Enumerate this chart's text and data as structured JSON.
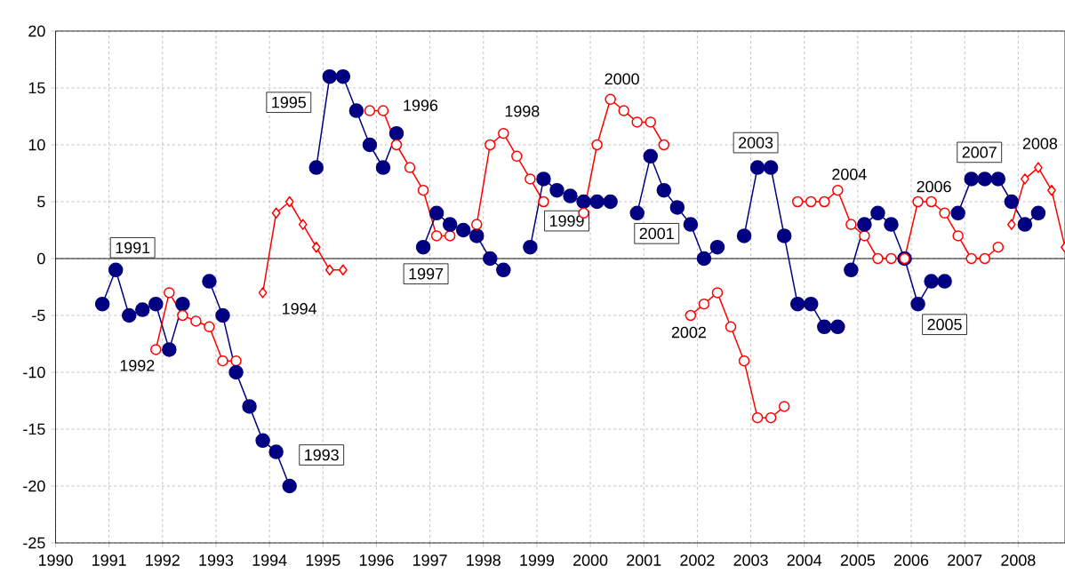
{
  "chart_data": {
    "type": "line",
    "xlim": [
      1990,
      2008.875
    ],
    "ylim": [
      -25,
      20
    ],
    "xticks": [
      1990,
      1991,
      1992,
      1993,
      1994,
      1995,
      1996,
      1997,
      1998,
      1999,
      2000,
      2001,
      2002,
      2003,
      2004,
      2005,
      2006,
      2007,
      2008
    ],
    "yticks": [
      -25,
      -20,
      -15,
      -10,
      -5,
      0,
      5,
      10,
      15,
      20
    ],
    "grid": true,
    "legend": false,
    "ref_lines": [
      {
        "axis": "y",
        "value": 0,
        "color": "#000000"
      }
    ],
    "series": [
      {
        "name": "1991",
        "color": "#000080",
        "marker": "circle",
        "x": [
          1990.875,
          1991.125,
          1991.375,
          1991.625,
          1991.875,
          1992.125,
          1992.375
        ],
        "values": [
          -4,
          -1,
          -5,
          -4.5,
          -4,
          -8,
          -4
        ]
      },
      {
        "name": "1992",
        "color": "#ff0000",
        "marker": "circle",
        "x": [
          1991.875,
          1992.125,
          1992.375,
          1992.625,
          1992.875,
          1993.125,
          1993.375
        ],
        "values": [
          -8,
          -3,
          -5,
          -5.5,
          -6,
          -9,
          -9
        ]
      },
      {
        "name": "1993",
        "color": "#000080",
        "marker": "circle",
        "x": [
          1992.875,
          1993.125,
          1993.375,
          1993.625,
          1993.875,
          1994.125,
          1994.375
        ],
        "values": [
          -2,
          -5,
          -10,
          -13,
          -16,
          -17,
          -20
        ]
      },
      {
        "name": "1994",
        "color": "#ff0000",
        "marker": "diamond",
        "x": [
          1993.875,
          1994.125,
          1994.375,
          1994.625,
          1994.875,
          1995.125,
          1995.375
        ],
        "values": [
          -3,
          4,
          5,
          3,
          1,
          -1,
          -1
        ]
      },
      {
        "name": "1995",
        "color": "#000080",
        "marker": "circle",
        "x": [
          1994.875,
          1995.125,
          1995.375,
          1995.625,
          1995.875,
          1996.125,
          1996.375
        ],
        "values": [
          8,
          16,
          16,
          13,
          10,
          8,
          11
        ]
      },
      {
        "name": "1996",
        "color": "#ff0000",
        "marker": "circle",
        "x": [
          1995.875,
          1996.125,
          1996.375,
          1996.625,
          1996.875,
          1997.125,
          1997.375
        ],
        "values": [
          13,
          13,
          10,
          8,
          6,
          2,
          2
        ]
      },
      {
        "name": "1997",
        "color": "#000080",
        "marker": "circle",
        "x": [
          1996.875,
          1997.125,
          1997.375,
          1997.625,
          1997.875,
          1998.125,
          1998.375
        ],
        "values": [
          1,
          4,
          3,
          2.5,
          2,
          0,
          -1
        ]
      },
      {
        "name": "1998",
        "color": "#ff0000",
        "marker": "circle",
        "x": [
          1997.875,
          1998.125,
          1998.375,
          1998.625,
          1998.875,
          1999.125
        ],
        "values": [
          3,
          10,
          11,
          9,
          7,
          5
        ]
      },
      {
        "name": "1999",
        "color": "#000080",
        "marker": "circle",
        "x": [
          1998.875,
          1999.125,
          1999.375,
          1999.625,
          1999.875,
          2000.125,
          2000.375
        ],
        "values": [
          1,
          7,
          6,
          5.5,
          5,
          5,
          5
        ]
      },
      {
        "name": "2000",
        "color": "#ff0000",
        "marker": "circle",
        "x": [
          1999.875,
          2000.125,
          2000.375,
          2000.625,
          2000.875,
          2001.125,
          2001.375
        ],
        "values": [
          4,
          10,
          14,
          13,
          12,
          12,
          10
        ]
      },
      {
        "name": "2001",
        "color": "#000080",
        "marker": "circle",
        "x": [
          2000.875,
          2001.125,
          2001.375,
          2001.625,
          2001.875,
          2002.125,
          2002.375
        ],
        "values": [
          4,
          9,
          6,
          4.5,
          3,
          0,
          1
        ]
      },
      {
        "name": "2002",
        "color": "#ff0000",
        "marker": "circle",
        "x": [
          2001.875,
          2002.125,
          2002.375,
          2002.625,
          2002.875,
          2003.125,
          2003.375,
          2003.625
        ],
        "values": [
          -5,
          -4,
          -3,
          -6,
          -9,
          -14,
          -14,
          -13
        ]
      },
      {
        "name": "2003",
        "color": "#000080",
        "marker": "circle",
        "x": [
          2002.875,
          2003.125,
          2003.375,
          2003.625,
          2003.875,
          2004.125,
          2004.375,
          2004.625
        ],
        "values": [
          2,
          8,
          8,
          2,
          -4,
          -4,
          -6,
          -6
        ]
      },
      {
        "name": "2004",
        "color": "#ff0000",
        "marker": "circle",
        "x": [
          2003.875,
          2004.125,
          2004.375,
          2004.625,
          2004.875,
          2005.125,
          2005.375,
          2005.625,
          2005.875
        ],
        "values": [
          5,
          5,
          5,
          6,
          3,
          2,
          0,
          0,
          0
        ]
      },
      {
        "name": "2005",
        "color": "#000080",
        "marker": "circle",
        "x": [
          2004.875,
          2005.125,
          2005.375,
          2005.625,
          2005.875,
          2006.125,
          2006.375,
          2006.625
        ],
        "values": [
          -1,
          3,
          4,
          3,
          0,
          -4,
          -2,
          -2
        ]
      },
      {
        "name": "2006",
        "color": "#ff0000",
        "marker": "circle",
        "x": [
          2005.875,
          2006.125,
          2006.375,
          2006.625,
          2006.875,
          2007.125,
          2007.375,
          2007.625
        ],
        "values": [
          0,
          5,
          5,
          4,
          2,
          0,
          0,
          1
        ]
      },
      {
        "name": "2007",
        "color": "#000080",
        "marker": "circle",
        "x": [
          2006.875,
          2007.125,
          2007.375,
          2007.625,
          2007.875,
          2008.125,
          2008.375
        ],
        "values": [
          4,
          7,
          7,
          7,
          5,
          3,
          4
        ]
      },
      {
        "name": "2008",
        "color": "#ff0000",
        "marker": "diamond",
        "x": [
          2007.875,
          2008.125,
          2008.375,
          2008.625,
          2008.875
        ],
        "values": [
          3,
          7,
          8,
          6,
          1
        ]
      }
    ]
  }
}
